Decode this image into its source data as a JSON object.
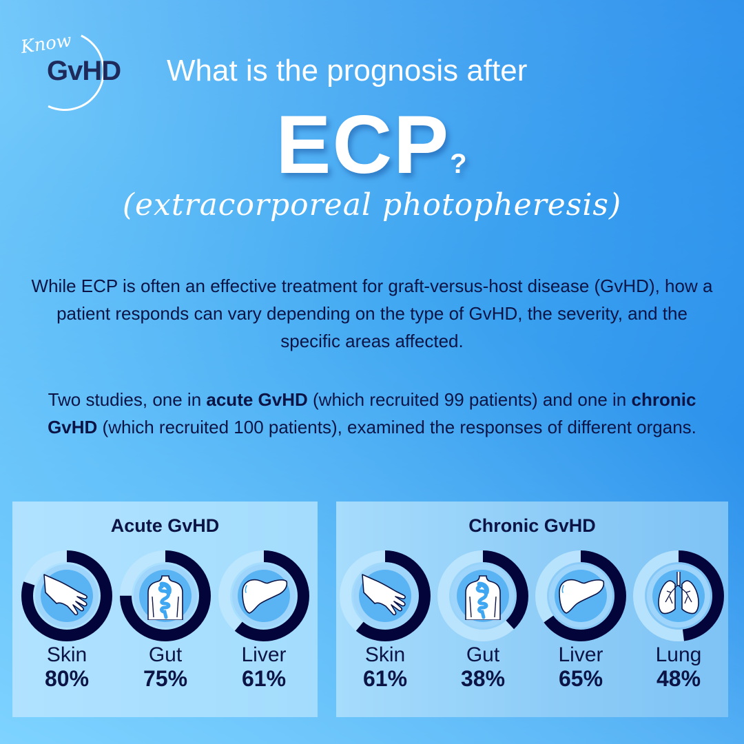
{
  "logo": {
    "script": "Know",
    "wordmark": "GvHD"
  },
  "header": {
    "question": "What is the prognosis after",
    "acronym": "ECP",
    "question_mark": "?",
    "expansion": "(extracorporeal photopheresis)"
  },
  "intro": {
    "paragraph1": "While ECP is often an effective treatment for graft-versus-host disease (GvHD), how a patient responds can vary depending on the type of GvHD, the severity, and the specific areas affected.",
    "p2_part1": "Two studies, one in ",
    "p2_bold1": "acute GvHD",
    "p2_part2": " (which recruited 99 patients) and one in ",
    "p2_bold2": "chronic GvHD",
    "p2_part3": " (which recruited 100 patients), examined the responses of different organs."
  },
  "colors": {
    "ring_filled": "#03053a",
    "ring_track": "#bfe6fe",
    "icon_bg": "#5ab4f4",
    "text_dark": "#0c1446"
  },
  "panels": {
    "acute": {
      "title": "Acute GvHD",
      "organs": [
        {
          "name": "Skin",
          "value": "80%",
          "icon": "hand-icon"
        },
        {
          "name": "Gut",
          "value": "75%",
          "icon": "torso-gut-icon"
        },
        {
          "name": "Liver",
          "value": "61%",
          "icon": "liver-icon"
        }
      ]
    },
    "chronic": {
      "title": "Chronic GvHD",
      "organs": [
        {
          "name": "Skin",
          "value": "61%",
          "icon": "hand-icon"
        },
        {
          "name": "Gut",
          "value": "38%",
          "icon": "torso-gut-icon"
        },
        {
          "name": "Liver",
          "value": "65%",
          "icon": "liver-icon"
        },
        {
          "name": "Lung",
          "value": "48%",
          "icon": "lungs-icon"
        }
      ]
    }
  },
  "chart_data": [
    {
      "type": "pie",
      "title": "Acute GvHD",
      "categories": [
        "Skin",
        "Gut",
        "Liver"
      ],
      "values": [
        80,
        75,
        61
      ],
      "unit": "%"
    },
    {
      "type": "pie",
      "title": "Chronic GvHD",
      "categories": [
        "Skin",
        "Gut",
        "Liver",
        "Lung"
      ],
      "values": [
        61,
        38,
        65,
        48
      ],
      "unit": "%"
    }
  ]
}
